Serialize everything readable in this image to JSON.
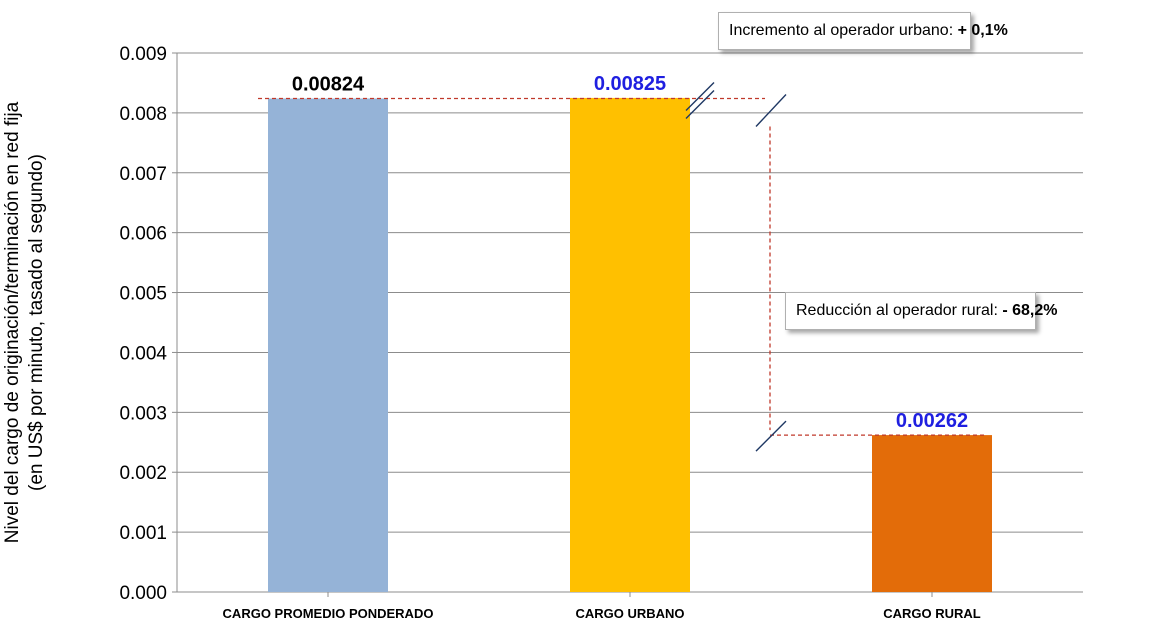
{
  "colors": {
    "promedio_bar": "#95B3D7",
    "urbano_bar": "#FFC000",
    "rural_bar": "#E36C09",
    "dark_label": "#000000",
    "blue_label": "#1F1FE0",
    "guide": "#C0392B",
    "gridline": "#8C8C8C",
    "callout_urbano_bg": "#FAC090",
    "callout_rural_bg": "#F9A3A3"
  },
  "chart_data": {
    "type": "bar",
    "categories": [
      "CARGO PROMEDIO  PONDERADO",
      "CARGO URBANO",
      "CARGO RURAL"
    ],
    "values": [
      0.00824,
      0.00825,
      0.00262
    ],
    "value_labels": [
      "0.00824",
      "0.00825",
      "0.00262"
    ],
    "ylabel": "Nivel del cargo de originación/terminación en red fija (en US$ por minuto, tasado al segundo)",
    "ylabel_lines": [
      "Nivel del cargo de originación/terminación en red fija",
      "(en US$ por minuto, tasado al segundo)"
    ],
    "ylim": [
      0,
      0.009
    ],
    "yticks": [
      "0.000",
      "0.001",
      "0.002",
      "0.003",
      "0.004",
      "0.005",
      "0.006",
      "0.007",
      "0.008",
      "0.009"
    ],
    "grid": true,
    "annotations": {
      "urbano": {
        "text": "Incremento al operador urbano: ",
        "value": "+ 0,1%"
      },
      "rural": {
        "text": "Reducción al operador rural: ",
        "value": "- 68,2%"
      }
    }
  }
}
